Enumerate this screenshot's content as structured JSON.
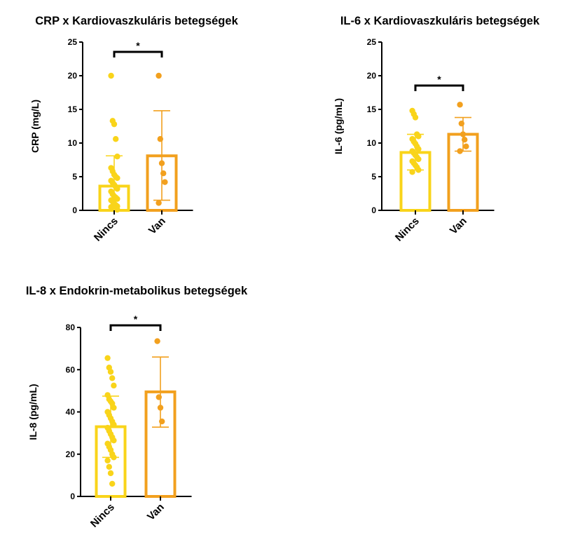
{
  "chart_data": [
    {
      "type": "bar",
      "title": "CRP x Kardiovaszkuláris betegségek",
      "xlabel": "",
      "ylabel": "CRP (mg/L)",
      "ylim": [
        0,
        25
      ],
      "yticks": [
        "0",
        "5",
        "10",
        "15",
        "20",
        "25"
      ],
      "categories": [
        "Nincs",
        "Van"
      ],
      "values": [
        3.6,
        8.1
      ],
      "error_upper": [
        8.1,
        14.8
      ],
      "error_lower": [
        0,
        1.5
      ],
      "points": [
        [
          20,
          13.3,
          12.8,
          10.6,
          8.0,
          6.3,
          5.8,
          5.3,
          5.0,
          4.8,
          4.4,
          4.1,
          3.8,
          3.5,
          3.2,
          2.8,
          2.4,
          2.1,
          1.9,
          1.7,
          1.5,
          1.3,
          1.0,
          0.8,
          0.6,
          0.5,
          0.4,
          0.3,
          0.2,
          0.1
        ],
        [
          20,
          10.6,
          7.0,
          5.5,
          4.2,
          1.1
        ]
      ],
      "significance": "*",
      "colors": [
        "#f9d41a",
        "#f2a01e"
      ]
    },
    {
      "type": "bar",
      "title": "IL-6 x Kardiovaszkuláris betegségek",
      "xlabel": "",
      "ylabel": "IL-6 (pg/mL)",
      "ylim": [
        0,
        25
      ],
      "yticks": [
        "0",
        "5",
        "10",
        "15",
        "20",
        "25"
      ],
      "categories": [
        "Nincs",
        "Van"
      ],
      "values": [
        8.6,
        11.3
      ],
      "error_upper": [
        11.3,
        13.8
      ],
      "error_lower": [
        6.0,
        8.8
      ],
      "points": [
        [
          14.8,
          14.3,
          13.8,
          11.3,
          11.0,
          10.6,
          10.2,
          9.9,
          9.5,
          9.1,
          8.8,
          8.5,
          8.2,
          7.9,
          7.6,
          7.3,
          7.0,
          6.7,
          6.4,
          6.0,
          5.7
        ],
        [
          15.7,
          12.9,
          11.3,
          10.5,
          9.5,
          8.8
        ]
      ],
      "significance": "*",
      "colors": [
        "#f9d41a",
        "#f2a01e"
      ]
    },
    {
      "type": "bar",
      "title": "IL-8 x Endokrin-metabolikus betegségek",
      "xlabel": "",
      "ylabel": "IL-8 (pg/mL)",
      "ylim": [
        0,
        80
      ],
      "yticks": [
        "0",
        "20",
        "40",
        "60",
        "80"
      ],
      "categories": [
        "Nincs",
        "Van"
      ],
      "values": [
        33,
        49.5
      ],
      "error_upper": [
        47.5,
        66
      ],
      "error_lower": [
        18.5,
        32.8
      ],
      "points": [
        [
          65.5,
          61,
          59,
          56,
          52.5,
          48,
          46,
          45,
          44,
          42,
          40,
          38.5,
          37,
          35.5,
          34,
          32.5,
          31,
          29.5,
          28,
          26.5,
          25,
          23.5,
          22,
          20,
          18.5,
          17,
          14,
          11,
          6
        ],
        [
          73.5,
          47,
          42,
          35.5
        ]
      ],
      "significance": "*",
      "colors": [
        "#f9d41a",
        "#f2a01e"
      ]
    }
  ]
}
